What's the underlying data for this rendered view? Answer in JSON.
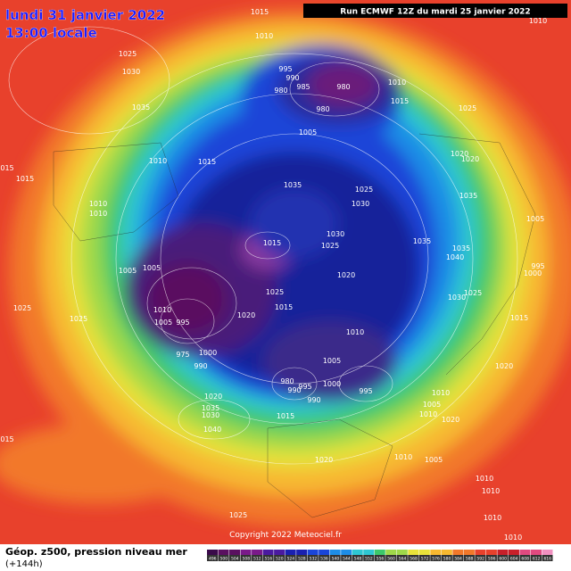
{
  "header": {
    "title": "lundi 31 janvier 2022",
    "subtitle": "13:00 locale",
    "run_info": "Run ECMWF 12Z du mardi 25 janvier 2022"
  },
  "footer": {
    "caption": "Géop. z500, pression niveau mer",
    "horizon": "(+144h)",
    "copyright": "Copyright 2022 Meteociel.fr"
  },
  "scale": {
    "labels": [
      496,
      500,
      504,
      508,
      512,
      516,
      520,
      524,
      528,
      532,
      536,
      540,
      544,
      548,
      552,
      556,
      560,
      564,
      568,
      572,
      576,
      580,
      584,
      588,
      592,
      596,
      600,
      604,
      608,
      612,
      616
    ]
  },
  "map_labels": [
    "1015",
    "1010",
    "1025",
    "1030",
    "1035",
    "995",
    "990",
    "980",
    "985",
    "980",
    "980",
    "1010",
    "1015",
    "1025",
    "1005",
    "1020",
    "1020",
    "1010",
    "1015",
    "015",
    "1015",
    "1035",
    "1025",
    "1030",
    "1035",
    "1010",
    "1010",
    "1005",
    "1030",
    "1015",
    "1025",
    "1035",
    "1035",
    "1040",
    "995",
    "1000",
    "1005",
    "1005",
    "1020",
    "1030",
    "1025",
    "1025",
    "1015",
    "1015",
    "1025",
    "1025",
    "1010",
    "1005",
    "995",
    "1020",
    "1010",
    "1005",
    "1020",
    "975",
    "1000",
    "990",
    "980",
    "990",
    "995",
    "1000",
    "995",
    "990",
    "1010",
    "1005",
    "1020",
    "1030",
    "1035",
    "1040",
    "1015",
    "1010",
    "1020",
    "015",
    "1020",
    "1010",
    "1005",
    "1010",
    "1010",
    "1025",
    "1010",
    "1010",
    "1010"
  ]
}
